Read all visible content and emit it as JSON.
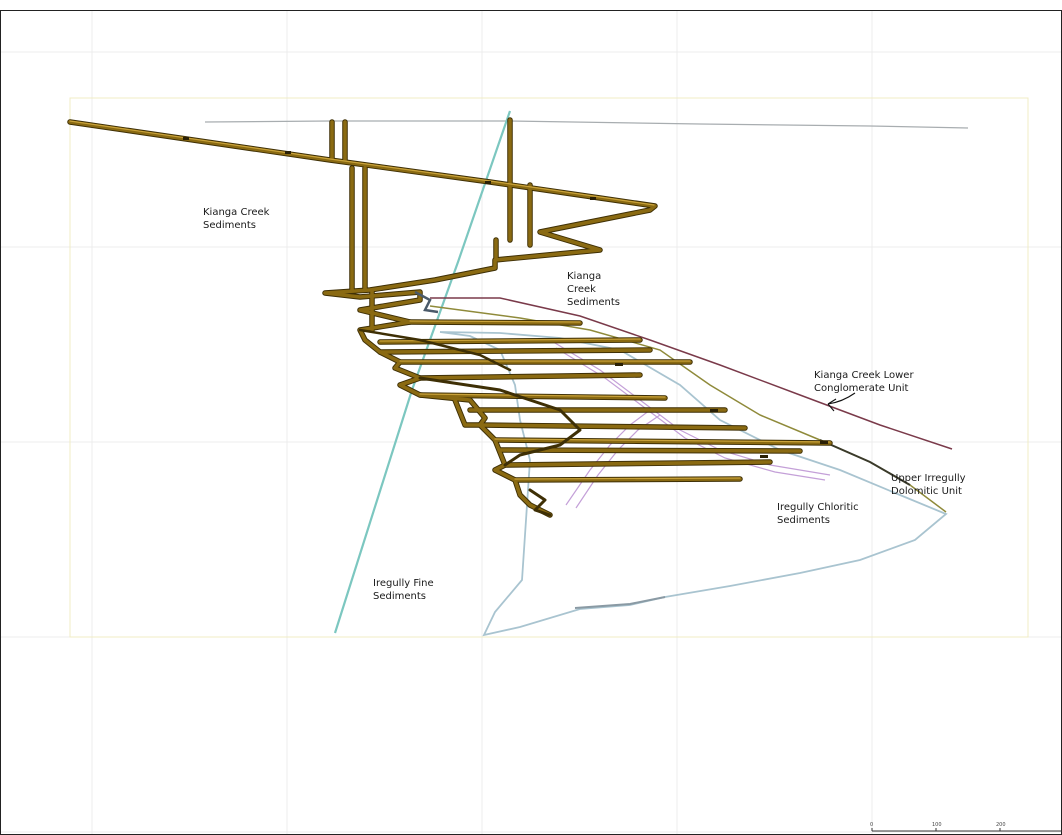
{
  "labels": {
    "kianga_creek_sediments_left": "Kianga Creek\nSediments",
    "kianga_creek_sediments_center": "Kianga\nCreek\nSediments",
    "kianga_creek_lower_conglomerate": "Kianga Creek Lower\nConglomerate Unit",
    "upper_irregully_dolomitic": "Upper Irregully\nDolomitic Unit",
    "iregully_chloritic_sediments": "Iregully Chloritic\nSediments",
    "iregully_fine_sediments": "Iregully Fine\nSediments"
  },
  "scale_bar": {
    "ticks": [
      "0",
      "100",
      "200"
    ]
  },
  "colors": {
    "decline": "#8a6a12",
    "decline_highlight": "#c9a23a",
    "decline_shadow": "#3e2f05",
    "fault_cyan": "#7cc7c0",
    "pale_blue_contact": "#a9cbd8",
    "maroon_contact": "#7a3a4a",
    "olive_contact": "#8f8a3a",
    "lilac_ore": "#c4a0d8",
    "grid": "#ebebeb",
    "frame_yellow": "#f2eec8"
  }
}
